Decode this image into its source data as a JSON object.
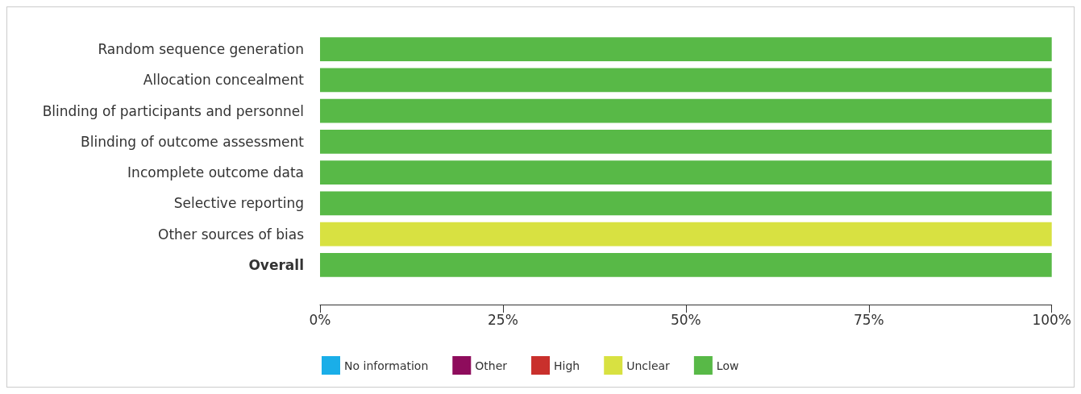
{
  "chart_data": {
    "type": "bar",
    "orientation": "horizontal",
    "stacked": true,
    "categories": [
      "Random sequence generation",
      "Allocation concealment",
      "Blinding of participants and personnel",
      "Blinding of outcome assessment",
      "Incomplete outcome data",
      "Selective reporting",
      "Other sources of bias",
      "Overall"
    ],
    "series": [
      {
        "name": "No information",
        "color": "#1aaee8",
        "values": [
          0,
          0,
          0,
          0,
          0,
          0,
          0,
          0
        ]
      },
      {
        "name": "Other",
        "color": "#8e0c5c",
        "values": [
          0,
          0,
          0,
          0,
          0,
          0,
          0,
          0
        ]
      },
      {
        "name": "High",
        "color": "#c9302c",
        "values": [
          0,
          0,
          0,
          0,
          0,
          0,
          0,
          0
        ]
      },
      {
        "name": "Unclear",
        "color": "#d8e141",
        "values": [
          0,
          0,
          0,
          0,
          0,
          0,
          100,
          0
        ]
      },
      {
        "name": "Low",
        "color": "#58b947",
        "values": [
          100,
          100,
          100,
          100,
          100,
          100,
          0,
          100
        ]
      }
    ],
    "xlim": [
      0,
      100
    ],
    "xticks": [
      {
        "value": 0,
        "label": "0%"
      },
      {
        "value": 25,
        "label": "25%"
      },
      {
        "value": 50,
        "label": "50%"
      },
      {
        "value": 75,
        "label": "75%"
      },
      {
        "value": 100,
        "label": "100%"
      }
    ],
    "grid": false,
    "legend": "bottom"
  }
}
